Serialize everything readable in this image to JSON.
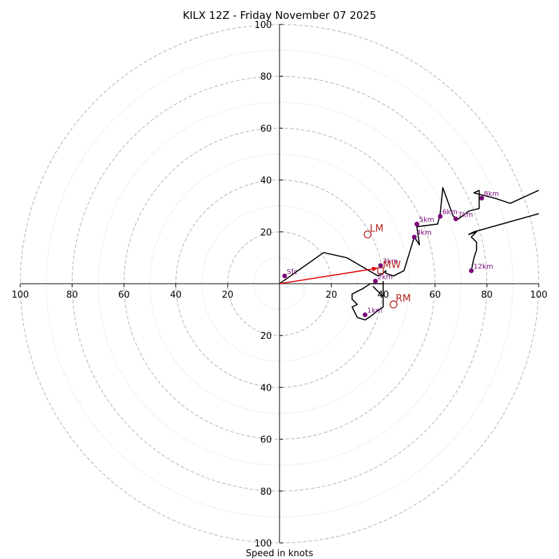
{
  "chart_data": {
    "type": "hodograph",
    "title": "KILX 12Z - Friday November 07 2025",
    "xlabel": "Speed in knots",
    "units": "knots",
    "range": [
      -100,
      100
    ],
    "ring_major": [
      20,
      40,
      60,
      80,
      100
    ],
    "ring_minor": [
      10,
      30,
      50,
      70,
      90
    ],
    "tick_values": [
      100,
      80,
      60,
      40,
      20
    ],
    "hodograph_trace": [
      [
        0,
        0
      ],
      [
        17,
        12
      ],
      [
        26,
        10
      ],
      [
        38,
        3
      ],
      [
        40,
        4
      ],
      [
        41,
        5
      ],
      [
        41,
        4
      ],
      [
        44,
        3
      ],
      [
        48,
        5
      ],
      [
        52,
        18
      ],
      [
        54,
        15
      ],
      [
        53,
        22
      ],
      [
        61,
        23
      ],
      [
        62,
        27
      ],
      [
        63,
        37
      ],
      [
        67,
        26
      ],
      [
        69,
        25
      ],
      [
        73,
        28
      ],
      [
        77,
        29
      ],
      [
        77,
        36
      ],
      [
        75,
        35
      ],
      [
        83,
        33
      ],
      [
        89,
        31
      ],
      [
        100,
        36
      ]
    ],
    "hodograph_trace_2": [
      [
        40,
        1
      ],
      [
        40,
        -9
      ],
      [
        37,
        -11
      ],
      [
        36,
        -12
      ],
      [
        33,
        -14
      ],
      [
        30,
        -13
      ],
      [
        28,
        -9
      ],
      [
        30,
        -8
      ],
      [
        28,
        -6
      ],
      [
        28,
        -4
      ],
      [
        32,
        -2
      ],
      [
        35,
        0
      ],
      [
        40,
        0
      ],
      [
        40,
        -5
      ],
      [
        38,
        -3
      ],
      [
        37,
        -2
      ],
      [
        36,
        -1
      ]
    ],
    "hodograph_trace_3": [
      [
        74,
        5
      ],
      [
        75,
        10
      ],
      [
        76,
        13
      ],
      [
        76,
        16
      ],
      [
        74,
        18
      ],
      [
        76,
        20
      ],
      [
        73,
        19
      ],
      [
        75,
        20
      ],
      [
        100,
        27
      ]
    ],
    "height_markers": [
      {
        "label": "Sfc",
        "u": 2,
        "v": 3
      },
      {
        "label": "1km",
        "u": 33,
        "v": -12
      },
      {
        "label": "2km",
        "u": 37,
        "v": 1
      },
      {
        "label": "3km",
        "u": 39,
        "v": 7
      },
      {
        "label": "4km",
        "u": 52,
        "v": 18
      },
      {
        "label": "5km",
        "u": 53,
        "v": 23
      },
      {
        "label": "6km",
        "u": 62,
        "v": 26
      },
      {
        "label": "7km",
        "u": 68,
        "v": 25
      },
      {
        "label": "8km",
        "u": 78,
        "v": 33
      },
      {
        "label": "12km",
        "u": 74,
        "v": 5
      }
    ],
    "storm_motion": [
      {
        "label": "LM",
        "u": 34,
        "v": 19
      },
      {
        "label": "RM",
        "u": 44,
        "v": -8
      },
      {
        "label": "MW",
        "u": 39,
        "v": 5
      }
    ],
    "shear_vector": {
      "from": [
        0,
        0
      ],
      "to": [
        38,
        6
      ]
    },
    "colors": {
      "trace": "#000000",
      "marker": "#7a0a7a",
      "motion": "#b22222",
      "shear": "#e00000",
      "grid": "#b8b8b8"
    }
  }
}
